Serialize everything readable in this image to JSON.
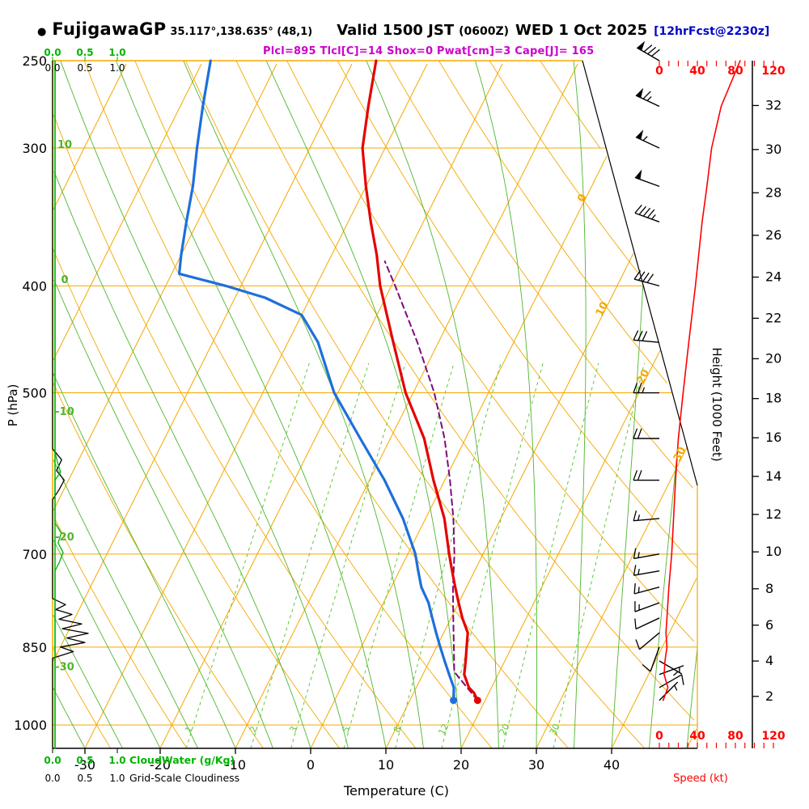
{
  "header": {
    "bullet": "●",
    "station": "FujigawaGP",
    "coords": "35.117°,138.635° (48,1)",
    "valid_main": "Valid 1500 JST",
    "valid_utc": "(0600Z)",
    "valid_date": "WED 1 Oct 2025",
    "forecast_tag": "[12hrFcst@2230z]",
    "stats_line": "Plcl=895 Tlcl[C]=14 Shox=0 Pwat[cm]=3 Cape[J]= 165"
  },
  "axes": {
    "pressure": {
      "label": "P (hPa)",
      "ticks": [
        250,
        300,
        400,
        500,
        700,
        850,
        1000
      ]
    },
    "temperature": {
      "label": "Temperature (C)",
      "ticks": [
        -30,
        -20,
        -10,
        0,
        10,
        20,
        30,
        40
      ]
    },
    "height": {
      "label": "Height (1000 Feet)",
      "ticks": [
        32,
        30,
        28,
        26,
        24,
        22,
        20,
        18,
        16,
        14,
        12,
        10,
        8,
        6,
        4,
        2
      ]
    },
    "speed": {
      "label": "Speed (kt)",
      "ticks": [
        0,
        40,
        80,
        120
      ]
    },
    "cloudwater": {
      "label": "CloudWater (g/Kg)",
      "ticks": [
        "0.0",
        "0.5",
        "1.0"
      ]
    },
    "cloudiness": {
      "label": "Grid-Scale Cloudiness",
      "ticks": [
        "0.0",
        "0.5",
        "1.0"
      ]
    }
  },
  "colors": {
    "line_orange": "#f5a800",
    "moist_green": "#4fb52e",
    "mixratio_green": "#5fc83a",
    "cloudwater_green": "#00b400",
    "temp_red": "#e60000",
    "dew_blue": "#1e6fdc",
    "parcel_purple": "#7d0b7d",
    "speed_red": "#ff0000",
    "stats_magenta": "#cc00cc",
    "tag_navy": "#0008c8",
    "black": "#000000"
  },
  "chart_data": {
    "type": "line",
    "subtype": "skewt-logp-sounding",
    "pressure_range_hpa": [
      250,
      1050
    ],
    "isotherm_step_c": 10,
    "dry_adiabat_step_c": 10,
    "moist_adiabat_step_c": 5,
    "pressure_gridlines": [
      300,
      400,
      500,
      700,
      850,
      1000
    ],
    "mixing_ratio_lines_gkg": [
      1,
      2,
      3,
      5,
      8,
      12,
      20,
      30
    ],
    "adiabat_labels_left": [
      {
        "value": 10,
        "p": 298
      },
      {
        "value": 0,
        "p": 395
      },
      {
        "value": -10,
        "p": 520
      },
      {
        "value": -20,
        "p": 676
      },
      {
        "value": -30,
        "p": 886
      }
    ],
    "isotherm_labels": [
      {
        "value": 0,
        "p": 334
      },
      {
        "value": 10,
        "p": 421
      },
      {
        "value": 20,
        "p": 485
      },
      {
        "value": 30,
        "p": 570
      }
    ],
    "temperature_profile": [
      [
        950,
        19
      ],
      [
        935,
        18
      ],
      [
        925,
        17
      ],
      [
        900,
        15.5
      ],
      [
        875,
        14.8
      ],
      [
        850,
        14
      ],
      [
        825,
        13.2
      ],
      [
        800,
        11.5
      ],
      [
        775,
        10
      ],
      [
        750,
        8.5
      ],
      [
        725,
        7
      ],
      [
        700,
        5.5
      ],
      [
        650,
        2.5
      ],
      [
        600,
        -1.5
      ],
      [
        550,
        -5.5
      ],
      [
        500,
        -11
      ],
      [
        450,
        -16
      ],
      [
        400,
        -21.5
      ],
      [
        375,
        -24
      ],
      [
        350,
        -27
      ],
      [
        325,
        -30
      ],
      [
        300,
        -33
      ],
      [
        275,
        -35
      ],
      [
        250,
        -37
      ]
    ],
    "dewpoint_profile": [
      [
        950,
        15.8
      ],
      [
        925,
        15
      ],
      [
        900,
        13.5
      ],
      [
        875,
        12
      ],
      [
        850,
        10.5
      ],
      [
        825,
        9
      ],
      [
        800,
        7.5
      ],
      [
        775,
        6
      ],
      [
        750,
        4
      ],
      [
        725,
        2.5
      ],
      [
        700,
        1
      ],
      [
        650,
        -3
      ],
      [
        600,
        -8
      ],
      [
        550,
        -14
      ],
      [
        500,
        -20.5
      ],
      [
        450,
        -26
      ],
      [
        425,
        -30
      ],
      [
        410,
        -36
      ],
      [
        400,
        -42
      ],
      [
        390,
        -49
      ],
      [
        375,
        -50
      ],
      [
        350,
        -51.5
      ],
      [
        325,
        -53
      ],
      [
        300,
        -55
      ],
      [
        275,
        -57
      ],
      [
        250,
        -59
      ]
    ],
    "parcel_profile": [
      [
        950,
        19
      ],
      [
        895,
        14
      ],
      [
        850,
        12.3
      ],
      [
        800,
        10.3
      ],
      [
        750,
        8.2
      ],
      [
        700,
        6.2
      ],
      [
        650,
        3.7
      ],
      [
        600,
        0.7
      ],
      [
        550,
        -2.8
      ],
      [
        500,
        -7.2
      ],
      [
        450,
        -12.8
      ],
      [
        400,
        -19.5
      ],
      [
        380,
        -22.5
      ]
    ],
    "wind_barbs": [
      {
        "p": 950,
        "dir": 45,
        "kt": 5
      },
      {
        "p": 925,
        "dir": 60,
        "kt": 10
      },
      {
        "p": 900,
        "dir": 70,
        "kt": 5
      },
      {
        "p": 875,
        "dir": 120,
        "kt": 5
      },
      {
        "p": 850,
        "dir": 200,
        "kt": 10
      },
      {
        "p": 825,
        "dir": 230,
        "kt": 10
      },
      {
        "p": 800,
        "dir": 245,
        "kt": 10
      },
      {
        "p": 775,
        "dir": 250,
        "kt": 15
      },
      {
        "p": 750,
        "dir": 255,
        "kt": 15
      },
      {
        "p": 725,
        "dir": 260,
        "kt": 15
      },
      {
        "p": 700,
        "dir": 260,
        "kt": 15
      },
      {
        "p": 650,
        "dir": 265,
        "kt": 15
      },
      {
        "p": 600,
        "dir": 270,
        "kt": 20
      },
      {
        "p": 550,
        "dir": 270,
        "kt": 20
      },
      {
        "p": 500,
        "dir": 270,
        "kt": 25
      },
      {
        "p": 450,
        "dir": 275,
        "kt": 30
      },
      {
        "p": 400,
        "dir": 285,
        "kt": 40
      },
      {
        "p": 350,
        "dir": 290,
        "kt": 45
      },
      {
        "p": 325,
        "dir": 290,
        "kt": 50
      },
      {
        "p": 300,
        "dir": 295,
        "kt": 55
      },
      {
        "p": 275,
        "dir": 295,
        "kt": 65
      },
      {
        "p": 250,
        "dir": 300,
        "kt": 80
      }
    ],
    "wind_speed_curve": [
      [
        950,
        4
      ],
      [
        925,
        9
      ],
      [
        900,
        5
      ],
      [
        875,
        6
      ],
      [
        850,
        8
      ],
      [
        825,
        7
      ],
      [
        800,
        8
      ],
      [
        775,
        9
      ],
      [
        750,
        10
      ],
      [
        700,
        13
      ],
      [
        650,
        15
      ],
      [
        600,
        17
      ],
      [
        550,
        20
      ],
      [
        500,
        25
      ],
      [
        450,
        31
      ],
      [
        400,
        38
      ],
      [
        350,
        45
      ],
      [
        325,
        50
      ],
      [
        300,
        55
      ],
      [
        275,
        65
      ],
      [
        250,
        85
      ]
    ],
    "cloudiness_profile": [
      [
        1050,
        0
      ],
      [
        870,
        0
      ],
      [
        858,
        0.32
      ],
      [
        850,
        0.12
      ],
      [
        842,
        0.5
      ],
      [
        834,
        0.22
      ],
      [
        826,
        0.55
      ],
      [
        818,
        0.15
      ],
      [
        810,
        0.45
      ],
      [
        802,
        0.1
      ],
      [
        794,
        0.3
      ],
      [
        786,
        0.05
      ],
      [
        778,
        0.2
      ],
      [
        768,
        0
      ],
      [
        625,
        0
      ],
      [
        612,
        0.1
      ],
      [
        600,
        0.18
      ],
      [
        588,
        0.06
      ],
      [
        575,
        0.14
      ],
      [
        562,
        0
      ],
      [
        250,
        0
      ]
    ],
    "cloudwater_profile": [
      [
        1050,
        0
      ],
      [
        725,
        0
      ],
      [
        712,
        0.07
      ],
      [
        698,
        0.13
      ],
      [
        684,
        0.05
      ],
      [
        670,
        0.1
      ],
      [
        656,
        0
      ],
      [
        600,
        0
      ],
      [
        590,
        0.09
      ],
      [
        578,
        0.04
      ],
      [
        566,
        0
      ],
      [
        250,
        0
      ]
    ]
  }
}
